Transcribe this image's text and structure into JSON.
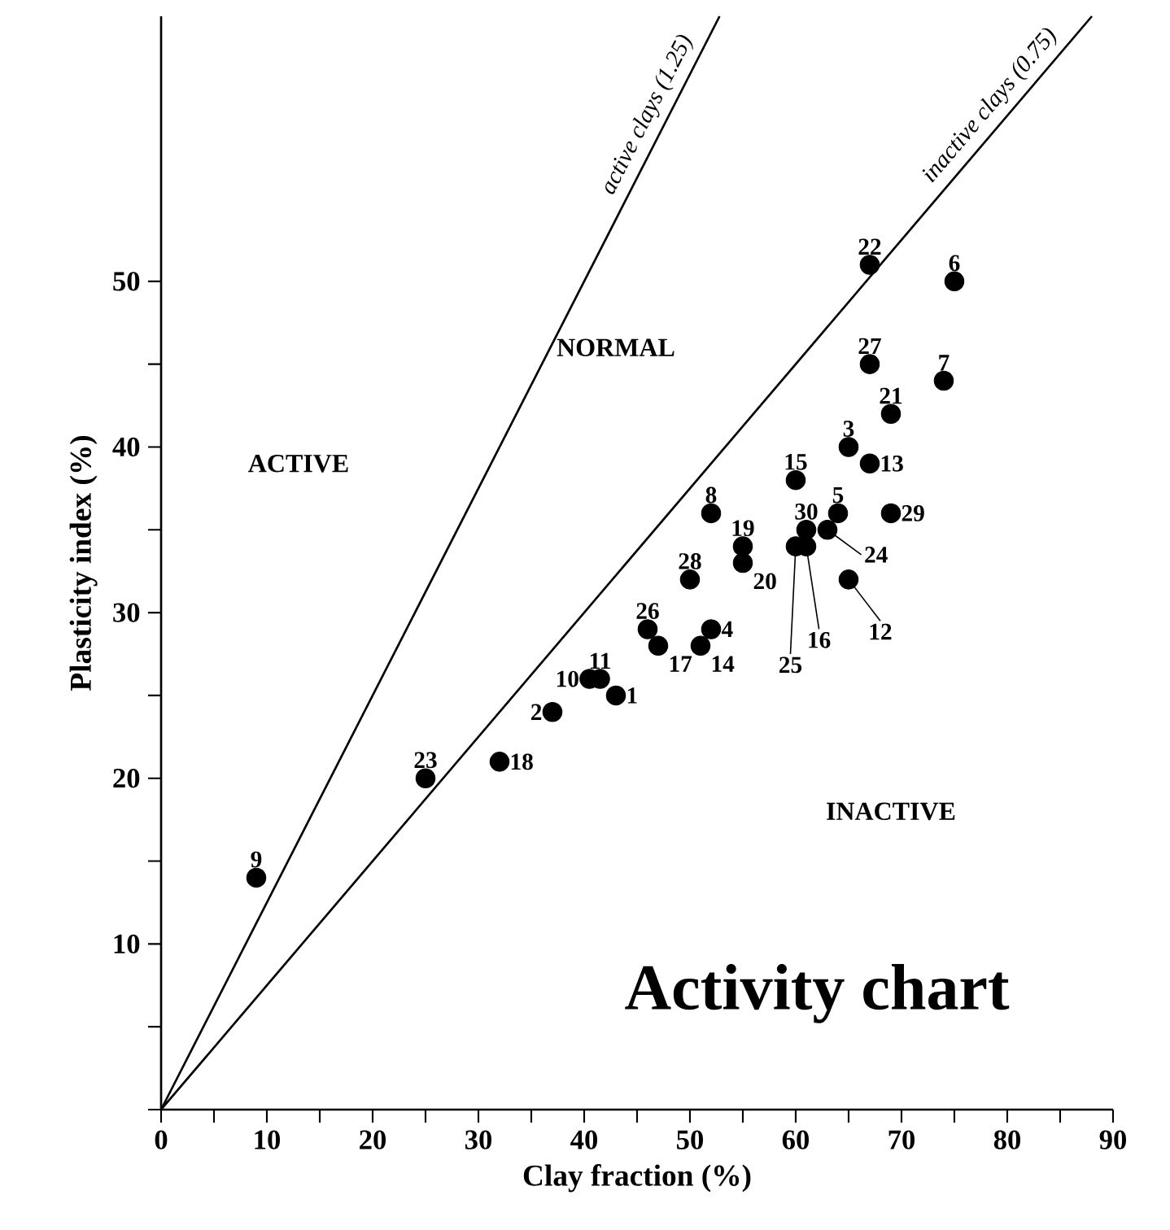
{
  "chart_data": {
    "type": "scatter",
    "xlabel": "Clay fraction (%)",
    "ylabel": "Plasticity index (%)",
    "xlim": [
      0,
      90
    ],
    "ylim": [
      0,
      66
    ],
    "xticks": [
      0,
      {
        "value": 5,
        "label": null
      },
      10,
      {
        "value": 15,
        "label": null
      },
      20,
      {
        "value": 25,
        "label": null
      },
      30,
      {
        "value": 35,
        "label": null
      },
      40,
      {
        "value": 45,
        "label": null
      },
      50,
      {
        "value": 55,
        "label": null
      },
      60,
      {
        "value": 65,
        "label": null
      },
      70,
      {
        "value": 75,
        "label": null
      },
      80,
      {
        "value": 85,
        "label": null
      },
      90
    ],
    "yticks": [
      {
        "value": 0,
        "label": null
      },
      {
        "value": 5,
        "label": null
      },
      10,
      {
        "value": 15,
        "label": null
      },
      20,
      {
        "value": 25,
        "label": null
      },
      30,
      {
        "value": 35,
        "label": null
      },
      40,
      {
        "value": 45,
        "label": null
      },
      50
    ],
    "grid": false,
    "series": [
      {
        "type": "scatter",
        "color": "#000000",
        "marker": "circle",
        "x": [
          43,
          37,
          65,
          52,
          64,
          75,
          74,
          52,
          9,
          40.5,
          41.5,
          65,
          67,
          51,
          60,
          61,
          47,
          32,
          55,
          55,
          69,
          67,
          25,
          63,
          60,
          46,
          67,
          50,
          69,
          61
        ],
        "values": [
          25,
          24,
          40,
          29,
          36,
          50,
          44,
          36,
          14,
          26,
          26,
          32,
          39,
          28,
          38,
          34,
          28,
          21,
          34,
          33,
          42,
          51,
          20,
          35,
          34,
          29,
          45,
          32,
          36,
          35
        ]
      },
      {
        "type": "line",
        "name": "active clays (1.25)",
        "color": "#000000",
        "marker": "none",
        "line_style": "solid",
        "x": [
          0,
          52.8
        ],
        "values": [
          0,
          66
        ]
      },
      {
        "type": "line",
        "name": "inactive clays (0.75)",
        "color": "#000000",
        "marker": "none",
        "line_style": "solid",
        "x": [
          0,
          88
        ],
        "values": [
          0,
          66
        ]
      }
    ],
    "annotations": [
      {
        "text": "1",
        "x": 43,
        "y": 25
      },
      {
        "text": "2",
        "x": 37,
        "y": 24
      },
      {
        "text": "3",
        "x": 65,
        "y": 40
      },
      {
        "text": "4",
        "x": 52,
        "y": 29
      },
      {
        "text": "5",
        "x": 64,
        "y": 36
      },
      {
        "text": "6",
        "x": 75,
        "y": 50
      },
      {
        "text": "7",
        "x": 74,
        "y": 44
      },
      {
        "text": "8",
        "x": 52,
        "y": 36
      },
      {
        "text": "9",
        "x": 9,
        "y": 14
      },
      {
        "text": "10",
        "x": 40.5,
        "y": 26
      },
      {
        "text": "11",
        "x": 41.5,
        "y": 26
      },
      {
        "text": "12",
        "x": 65,
        "y": 32
      },
      {
        "text": "13",
        "x": 67,
        "y": 39
      },
      {
        "text": "14",
        "x": 51,
        "y": 28
      },
      {
        "text": "15",
        "x": 60,
        "y": 38
      },
      {
        "text": "16",
        "x": 61,
        "y": 34
      },
      {
        "text": "17",
        "x": 47,
        "y": 28
      },
      {
        "text": "18",
        "x": 32,
        "y": 21
      },
      {
        "text": "19",
        "x": 55,
        "y": 34
      },
      {
        "text": "20",
        "x": 55,
        "y": 33
      },
      {
        "text": "21",
        "x": 69,
        "y": 42
      },
      {
        "text": "22",
        "x": 67,
        "y": 51
      },
      {
        "text": "23",
        "x": 25,
        "y": 20
      },
      {
        "text": "24",
        "x": 63,
        "y": 35
      },
      {
        "text": "25",
        "x": 60,
        "y": 34
      },
      {
        "text": "26",
        "x": 46,
        "y": 29
      },
      {
        "text": "27",
        "x": 67,
        "y": 45
      },
      {
        "text": "28",
        "x": 50,
        "y": 32
      },
      {
        "text": "29",
        "x": 69,
        "y": 36
      },
      {
        "text": "30",
        "x": 61,
        "y": 35
      },
      "ACTIVE",
      "NORMAL",
      "INACTIVE",
      "Activity chart"
    ]
  }
}
